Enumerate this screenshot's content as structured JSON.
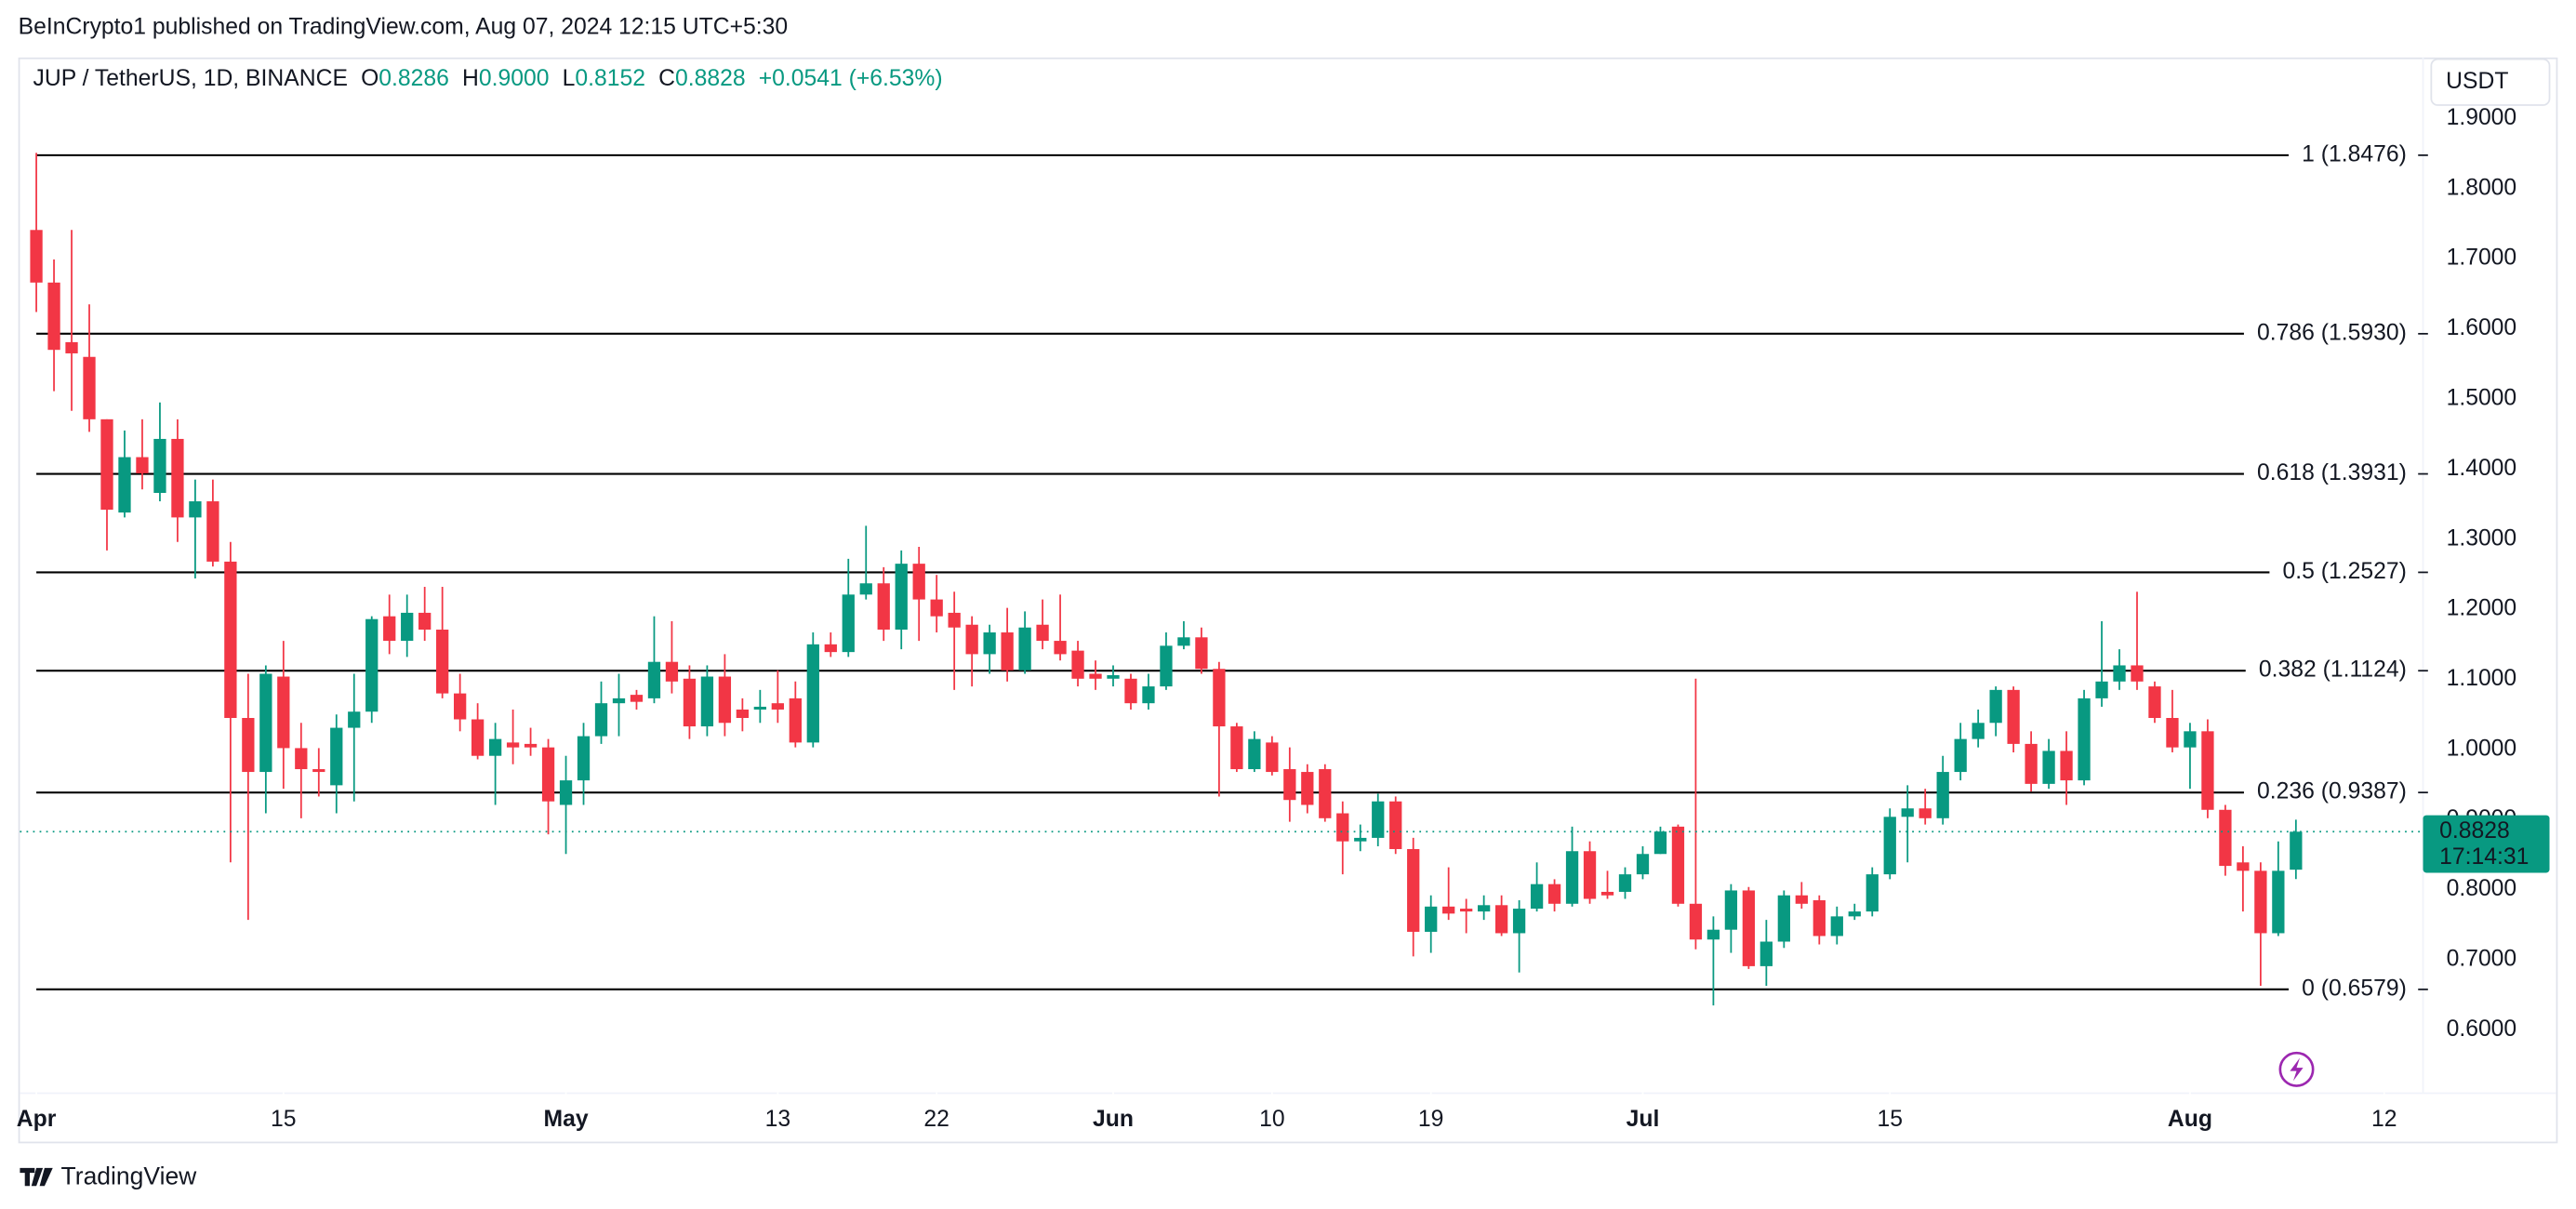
{
  "chart_data": {
    "type": "candlestick",
    "attribution": "BeInCrypto1 published on TradingView.com, Aug 07, 2024 12:15 UTC+5:30",
    "title": "JUP / TetherUS, 1D, BINANCE",
    "ohlc": [
      {
        "key": "O",
        "value": "0.8286"
      },
      {
        "key": "H",
        "value": "0.9000"
      },
      {
        "key": "L",
        "value": "0.8152"
      },
      {
        "key": "C",
        "value": "0.8828"
      }
    ],
    "change": "+0.0541 (+6.53%)",
    "currency": "USDT",
    "brand": "TradingView",
    "up_color": "#089981",
    "down_color": "#f23645",
    "grid": false,
    "xlim": [
      -0.93,
      135.2
    ],
    "xticks": [
      {
        "value": 0,
        "label": "Apr"
      },
      {
        "value": 14,
        "label": "15"
      },
      {
        "value": 30,
        "label": "May"
      },
      {
        "value": 42,
        "label": "13"
      },
      {
        "value": 51,
        "label": "22"
      },
      {
        "value": 61,
        "label": "Jun"
      },
      {
        "value": 70,
        "label": "10"
      },
      {
        "value": 79,
        "label": "19"
      },
      {
        "value": 91,
        "label": "Jul"
      },
      {
        "value": 105,
        "label": "15"
      },
      {
        "value": 122,
        "label": "Aug"
      },
      {
        "value": 133,
        "label": "12"
      }
    ],
    "ylim": [
      0.511,
      1.987
    ],
    "yticks": [
      {
        "value": 0.6,
        "label": "0.6000"
      },
      {
        "value": 0.7,
        "label": "0.7000"
      },
      {
        "value": 0.8,
        "label": "0.8000"
      },
      {
        "value": 0.9,
        "label": "0.9000"
      },
      {
        "value": 1,
        "label": "1.0000"
      },
      {
        "value": 1.1,
        "label": "1.1000"
      },
      {
        "value": 1.2,
        "label": "1.2000"
      },
      {
        "value": 1.3,
        "label": "1.3000"
      },
      {
        "value": 1.4,
        "label": "1.4000"
      },
      {
        "value": 1.5,
        "label": "1.5000"
      },
      {
        "value": 1.6,
        "label": "1.6000"
      },
      {
        "value": 1.7,
        "label": "1.7000"
      },
      {
        "value": 1.8,
        "label": "1.8000"
      },
      {
        "value": 1.9,
        "label": "1.9000"
      }
    ],
    "fib_levels": [
      {
        "value": 1.8476,
        "label": "1 (1.8476)"
      },
      {
        "value": 1.593,
        "label": "0.786 (1.5930)"
      },
      {
        "value": 1.3931,
        "label": "0.618 (1.3931)"
      },
      {
        "value": 1.2527,
        "label": "0.5 (1.2527)"
      },
      {
        "value": 1.1124,
        "label": "0.382 (1.1124)"
      },
      {
        "value": 0.9387,
        "label": "0.236 (0.9387)"
      },
      {
        "value": 0.6579,
        "label": "0 (0.6579)"
      }
    ],
    "last_price": {
      "value": 0.8828,
      "label": "0.8828",
      "countdown": "17:14:31"
    },
    "open": [
      1.741,
      1.666,
      1.581,
      1.56,
      1.471,
      1.338,
      1.417,
      1.366,
      1.443,
      1.331,
      1.354,
      1.268,
      1.045,
      0.968,
      1.104,
      1.002,
      0.972,
      0.949,
      1.031,
      1.054,
      1.19,
      1.155,
      1.195,
      1.171,
      1.08,
      1.043,
      0.991,
      1.01,
      1.008,
      1.003,
      0.921,
      0.956,
      1.019,
      1.066,
      1.078,
      1.073,
      1.125,
      1.101,
      1.033,
      1.104,
      1.057,
      1.057,
      1.066,
      1.073,
      1.01,
      1.15,
      1.139,
      1.221,
      1.237,
      1.171,
      1.265,
      1.214,
      1.195,
      1.178,
      1.136,
      1.167,
      1.113,
      1.178,
      1.155,
      1.141,
      1.108,
      1.101,
      1.101,
      1.066,
      1.09,
      1.148,
      1.16,
      1.115,
      1.033,
      0.972,
      1.01,
      0.972,
      0.968,
      0.972,
      0.909,
      0.869,
      0.874,
      0.926,
      0.858,
      0.74,
      0.776,
      0.773,
      0.769,
      0.778,
      0.738,
      0.773,
      0.808,
      0.78,
      0.855,
      0.797,
      0.797,
      0.822,
      0.851,
      0.89,
      0.78,
      0.729,
      0.743,
      0.799,
      0.691,
      0.726,
      0.792,
      0.785,
      0.734,
      0.762,
      0.769,
      0.822,
      0.904,
      0.916,
      0.902,
      0.968,
      1.015,
      1.038,
      1.085,
      1.008,
      0.951,
      0.998,
      0.956,
      1.073,
      1.097,
      1.12,
      1.09,
      1.045,
      1.003,
      1.026,
      0.914,
      0.839,
      0.827,
      0.738,
      0.8286
    ],
    "high": [
      1.851,
      1.699,
      1.741,
      1.635,
      1.471,
      1.455,
      1.471,
      1.495,
      1.471,
      1.385,
      1.385,
      1.296,
      1.108,
      1.12,
      1.155,
      1.038,
      1.002,
      1.05,
      1.108,
      1.19,
      1.221,
      1.221,
      1.232,
      1.232,
      1.108,
      1.066,
      1.038,
      1.057,
      1.031,
      1.015,
      0.991,
      1.038,
      1.097,
      1.108,
      1.085,
      1.19,
      1.183,
      1.12,
      1.12,
      1.136,
      1.073,
      1.085,
      1.113,
      1.097,
      1.167,
      1.167,
      1.272,
      1.319,
      1.26,
      1.284,
      1.289,
      1.249,
      1.225,
      1.19,
      1.178,
      1.202,
      1.197,
      1.214,
      1.221,
      1.155,
      1.127,
      1.12,
      1.108,
      1.108,
      1.167,
      1.183,
      1.174,
      1.125,
      1.038,
      1.026,
      1.019,
      1.003,
      0.979,
      0.979,
      0.926,
      0.893,
      0.937,
      0.933,
      0.874,
      0.792,
      0.832,
      0.787,
      0.792,
      0.792,
      0.785,
      0.839,
      0.815,
      0.89,
      0.869,
      0.827,
      0.832,
      0.862,
      0.89,
      0.893,
      1.101,
      0.762,
      0.808,
      0.804,
      0.757,
      0.799,
      0.811,
      0.792,
      0.776,
      0.78,
      0.832,
      0.916,
      0.949,
      0.944,
      0.991,
      1.038,
      1.057,
      1.09,
      1.09,
      1.026,
      1.015,
      1.026,
      1.085,
      1.183,
      1.143,
      1.225,
      1.097,
      1.085,
      1.038,
      1.043,
      0.921,
      0.862,
      0.839,
      0.869,
      0.9
    ],
    "low": [
      1.624,
      1.511,
      1.483,
      1.453,
      1.284,
      1.331,
      1.371,
      1.354,
      1.296,
      1.244,
      1.261,
      0.839,
      0.757,
      0.909,
      0.944,
      0.902,
      0.933,
      0.909,
      0.926,
      1.038,
      1.136,
      1.132,
      1.155,
      1.073,
      1.026,
      0.986,
      0.921,
      0.979,
      0.991,
      0.879,
      0.851,
      0.921,
      1.008,
      1.019,
      1.057,
      1.066,
      1.08,
      1.015,
      1.019,
      1.019,
      1.026,
      1.038,
      1.038,
      1.003,
      1.003,
      1.132,
      1.132,
      1.214,
      1.155,
      1.143,
      1.155,
      1.167,
      1.085,
      1.09,
      1.108,
      1.097,
      1.108,
      1.143,
      1.127,
      1.09,
      1.085,
      1.09,
      1.057,
      1.057,
      1.085,
      1.143,
      1.108,
      0.933,
      0.968,
      0.968,
      0.963,
      0.897,
      0.909,
      0.897,
      0.822,
      0.855,
      0.862,
      0.851,
      0.705,
      0.71,
      0.757,
      0.738,
      0.757,
      0.734,
      0.682,
      0.769,
      0.769,
      0.776,
      0.78,
      0.787,
      0.787,
      0.815,
      0.851,
      0.776,
      0.715,
      0.635,
      0.71,
      0.687,
      0.663,
      0.717,
      0.773,
      0.722,
      0.722,
      0.757,
      0.762,
      0.815,
      0.839,
      0.893,
      0.893,
      0.956,
      1.003,
      1.019,
      0.996,
      0.94,
      0.944,
      0.921,
      0.949,
      1.061,
      1.085,
      1.085,
      1.038,
      0.996,
      0.944,
      0.902,
      0.82,
      0.769,
      0.663,
      0.734,
      0.8152
    ],
    "close": [
      1.666,
      1.57,
      1.565,
      1.471,
      1.342,
      1.417,
      1.394,
      1.443,
      1.331,
      1.354,
      1.268,
      1.045,
      0.968,
      1.108,
      1.002,
      0.972,
      0.968,
      1.031,
      1.054,
      1.186,
      1.155,
      1.195,
      1.171,
      1.08,
      1.043,
      0.991,
      1.015,
      1.003,
      1.003,
      0.926,
      0.956,
      1.019,
      1.066,
      1.073,
      1.068,
      1.125,
      1.097,
      1.033,
      1.104,
      1.038,
      1.045,
      1.061,
      1.057,
      1.01,
      1.15,
      1.139,
      1.221,
      1.237,
      1.171,
      1.265,
      1.214,
      1.19,
      1.174,
      1.136,
      1.167,
      1.113,
      1.174,
      1.155,
      1.136,
      1.101,
      1.101,
      1.106,
      1.066,
      1.09,
      1.148,
      1.16,
      1.115,
      1.033,
      0.972,
      1.015,
      0.968,
      0.928,
      0.921,
      0.902,
      0.869,
      0.874,
      0.926,
      0.858,
      0.74,
      0.776,
      0.766,
      0.769,
      0.778,
      0.738,
      0.773,
      0.808,
      0.78,
      0.855,
      0.787,
      0.792,
      0.822,
      0.851,
      0.883,
      0.78,
      0.729,
      0.743,
      0.799,
      0.691,
      0.726,
      0.792,
      0.78,
      0.734,
      0.762,
      0.769,
      0.822,
      0.904,
      0.916,
      0.902,
      0.968,
      1.015,
      1.038,
      1.085,
      1.008,
      0.951,
      0.998,
      0.956,
      1.073,
      1.097,
      1.12,
      1.097,
      1.045,
      1.003,
      1.026,
      0.914,
      0.834,
      0.827,
      0.738,
      0.827,
      0.8828
    ]
  }
}
